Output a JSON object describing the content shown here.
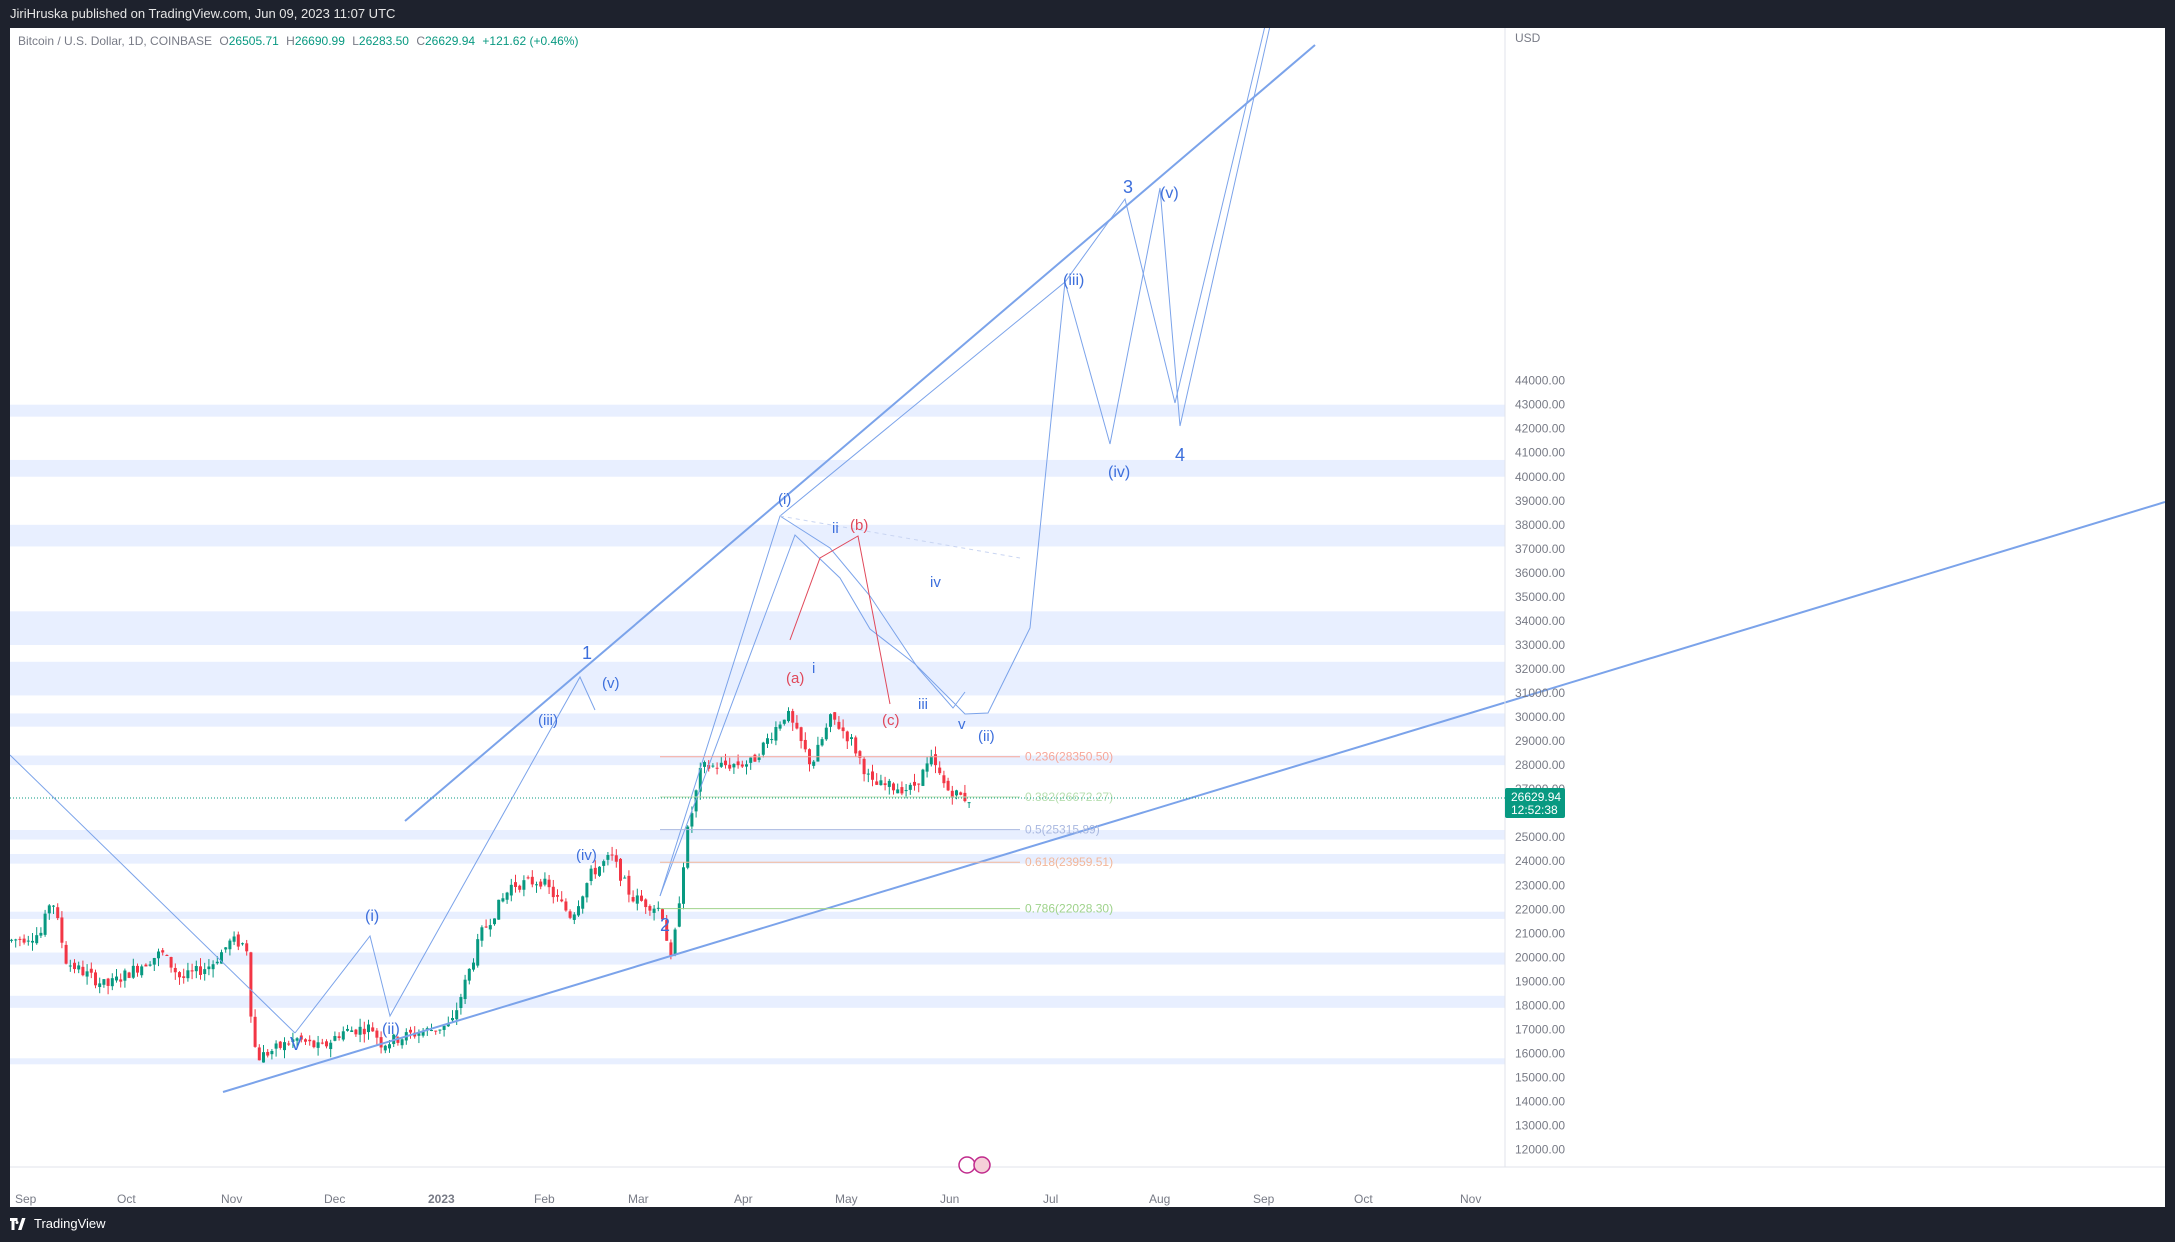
{
  "header": {
    "publish_text": "JiriHruska published on TradingView.com, Jun 09, 2023 11:07 UTC"
  },
  "symbol": {
    "title": "Bitcoin / U.S. Dollar, 1D, COINBASE",
    "open_label": "O",
    "open": "26505.71",
    "high_label": "H",
    "high": "26690.99",
    "low_label": "L",
    "low": "26283.50",
    "close_label": "C",
    "close": "26629.94",
    "change": "+121.62 (+0.46%)"
  },
  "price_axis": {
    "currency": "USD",
    "ticks": [
      "44000.00",
      "43000.00",
      "42000.00",
      "41000.00",
      "40000.00",
      "39000.00",
      "38000.00",
      "37000.00",
      "36000.00",
      "35000.00",
      "34000.00",
      "33000.00",
      "32000.00",
      "31000.00",
      "30000.00",
      "29000.00",
      "28000.00",
      "27000.00",
      "26000.00",
      "25000.00",
      "24000.00",
      "23000.00",
      "22000.00",
      "21000.00",
      "20000.00",
      "19000.00",
      "18000.00",
      "17000.00",
      "16000.00",
      "15000.00",
      "14000.00",
      "13000.00",
      "12000.00"
    ],
    "current_price": "26629.94",
    "countdown": "12:52:38"
  },
  "time_axis": {
    "labels": [
      "Sep",
      "Oct",
      "Nov",
      "Dec",
      "2023",
      "Feb",
      "Mar",
      "Apr",
      "May",
      "Jun",
      "Jul",
      "Aug",
      "Sep",
      "Oct",
      "Nov"
    ]
  },
  "fib_levels": [
    {
      "label": "0.236(28350.50)",
      "color": "#f7a79a"
    },
    {
      "label": "0.382(26672.27)",
      "color": "#b7dfb0"
    },
    {
      "label": "0.5(25315.89)",
      "color": "#a9b8e0"
    },
    {
      "label": "0.618(23959.51)",
      "color": "#f2b79a"
    },
    {
      "label": "0.786(22028.30)",
      "color": "#9fd38c"
    }
  ],
  "wave_labels": {
    "blue": [
      "V",
      "(i)",
      "(ii)",
      "(iii)",
      "(iv)",
      "(v)",
      "1",
      "2",
      "(i)",
      "ii",
      "i",
      "iii",
      "iv",
      "v",
      "(ii)",
      "(iii)",
      "3",
      "(iv)",
      "(v)",
      "4"
    ],
    "red": [
      "(a)",
      "(b)",
      "(c)"
    ]
  },
  "footer": {
    "brand": "TradingView"
  },
  "colors": {
    "up": "#089981",
    "down": "#f23645",
    "wave": "#3d6fdc",
    "corrective": "#e0485a",
    "zone": "#e8efff",
    "trend": "#7ba3ea"
  }
}
